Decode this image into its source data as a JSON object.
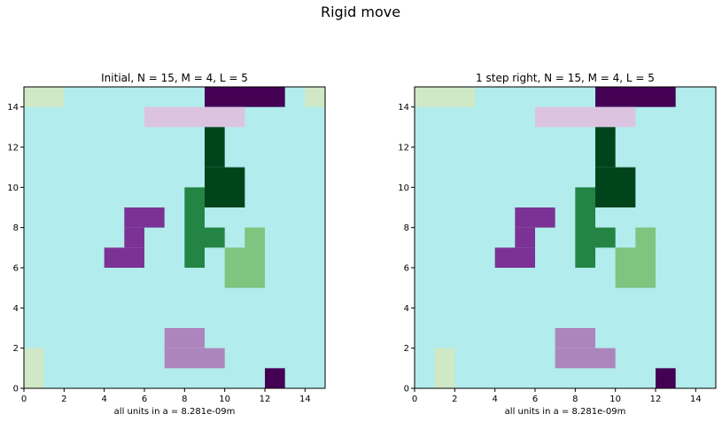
{
  "title": "Rigid move",
  "colors": {
    "background": "#b2ecec",
    "cells": {
      "dark_purple": "#440154",
      "light_pink": "#dcc4e0",
      "dark_green": "#00441b",
      "green": "#238443",
      "light_green": "#7fc47f",
      "pale_green": "#d0e8c6",
      "purple": "#7b3294",
      "lavender": "#ad85bd"
    }
  },
  "chart_data": [
    {
      "type": "heatmap",
      "title": "Initial, N = 15, M = 4, L = 5",
      "xlabel": "all units in a = 8.281e-09m",
      "ylabel": "",
      "xlim": [
        0,
        15
      ],
      "ylim": [
        0,
        15
      ],
      "xticks": [
        0,
        2,
        4,
        6,
        8,
        10,
        12,
        14
      ],
      "yticks": [
        0,
        2,
        4,
        6,
        8,
        10,
        12,
        14
      ],
      "cells": [
        {
          "x": 0,
          "y": 14,
          "w": 2,
          "h": 1,
          "color": "pale_green"
        },
        {
          "x": 14,
          "y": 14,
          "w": 1,
          "h": 1,
          "color": "pale_green"
        },
        {
          "x": 9,
          "y": 14,
          "w": 4,
          "h": 1,
          "color": "dark_purple"
        },
        {
          "x": 6,
          "y": 13,
          "w": 5,
          "h": 1,
          "color": "light_pink"
        },
        {
          "x": 9,
          "y": 11,
          "w": 1,
          "h": 2,
          "color": "dark_green"
        },
        {
          "x": 9,
          "y": 9,
          "w": 2,
          "h": 2,
          "color": "dark_green"
        },
        {
          "x": 8,
          "y": 6,
          "w": 1,
          "h": 4,
          "color": "green"
        },
        {
          "x": 9,
          "y": 7,
          "w": 1,
          "h": 1,
          "color": "green"
        },
        {
          "x": 5,
          "y": 8,
          "w": 2,
          "h": 1,
          "color": "purple"
        },
        {
          "x": 5,
          "y": 7,
          "w": 1,
          "h": 1,
          "color": "purple"
        },
        {
          "x": 4,
          "y": 6,
          "w": 2,
          "h": 1,
          "color": "purple"
        },
        {
          "x": 11,
          "y": 7,
          "w": 1,
          "h": 1,
          "color": "light_green"
        },
        {
          "x": 10,
          "y": 5,
          "w": 2,
          "h": 2,
          "color": "light_green"
        },
        {
          "x": 7,
          "y": 2,
          "w": 2,
          "h": 1,
          "color": "lavender"
        },
        {
          "x": 7,
          "y": 1,
          "w": 3,
          "h": 1,
          "color": "lavender"
        },
        {
          "x": 0,
          "y": 0,
          "w": 1,
          "h": 2,
          "color": "pale_green"
        },
        {
          "x": 12,
          "y": 0,
          "w": 1,
          "h": 1,
          "color": "dark_purple"
        }
      ]
    },
    {
      "type": "heatmap",
      "title": "1 step right, N = 15, M = 4, L = 5",
      "xlabel": "all units in a = 8.281e-09m",
      "ylabel": "",
      "xlim": [
        0,
        15
      ],
      "ylim": [
        0,
        15
      ],
      "xticks": [
        0,
        2,
        4,
        6,
        8,
        10,
        12,
        14
      ],
      "yticks": [
        0,
        2,
        4,
        6,
        8,
        10,
        12,
        14
      ],
      "cells": [
        {
          "x": 0,
          "y": 14,
          "w": 3,
          "h": 1,
          "color": "pale_green"
        },
        {
          "x": 9,
          "y": 14,
          "w": 4,
          "h": 1,
          "color": "dark_purple"
        },
        {
          "x": 6,
          "y": 13,
          "w": 5,
          "h": 1,
          "color": "light_pink"
        },
        {
          "x": 9,
          "y": 11,
          "w": 1,
          "h": 2,
          "color": "dark_green"
        },
        {
          "x": 9,
          "y": 9,
          "w": 2,
          "h": 2,
          "color": "dark_green"
        },
        {
          "x": 8,
          "y": 6,
          "w": 1,
          "h": 4,
          "color": "green"
        },
        {
          "x": 9,
          "y": 7,
          "w": 1,
          "h": 1,
          "color": "green"
        },
        {
          "x": 5,
          "y": 8,
          "w": 2,
          "h": 1,
          "color": "purple"
        },
        {
          "x": 5,
          "y": 7,
          "w": 1,
          "h": 1,
          "color": "purple"
        },
        {
          "x": 4,
          "y": 6,
          "w": 2,
          "h": 1,
          "color": "purple"
        },
        {
          "x": 11,
          "y": 7,
          "w": 1,
          "h": 1,
          "color": "light_green"
        },
        {
          "x": 10,
          "y": 5,
          "w": 2,
          "h": 2,
          "color": "light_green"
        },
        {
          "x": 7,
          "y": 2,
          "w": 2,
          "h": 1,
          "color": "lavender"
        },
        {
          "x": 7,
          "y": 1,
          "w": 3,
          "h": 1,
          "color": "lavender"
        },
        {
          "x": 1,
          "y": 0,
          "w": 1,
          "h": 2,
          "color": "pale_green"
        },
        {
          "x": 12,
          "y": 0,
          "w": 1,
          "h": 1,
          "color": "dark_purple"
        }
      ]
    }
  ]
}
